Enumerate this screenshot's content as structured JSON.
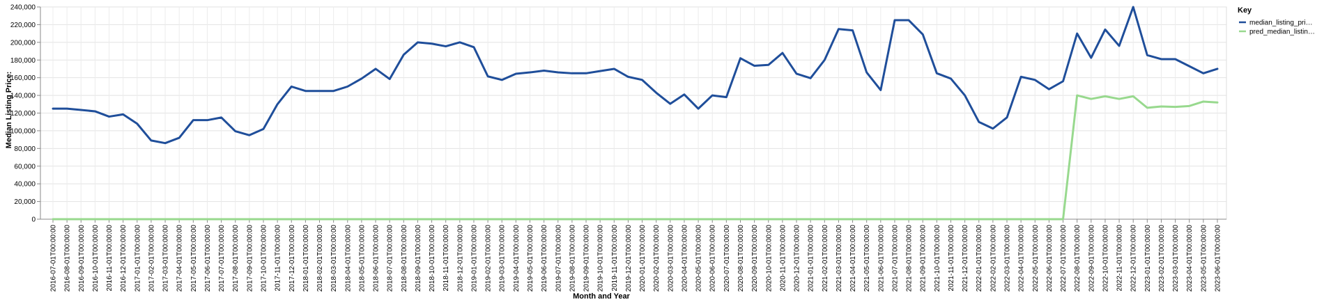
{
  "chart_data": {
    "type": "line",
    "xlabel": "Month and Year",
    "ylabel": "Median Listing Price:",
    "ylim": [
      0,
      240000
    ],
    "yticks": [
      "0",
      "20,000",
      "40,000",
      "60,000",
      "80,000",
      "100,000",
      "120,000",
      "140,000",
      "160,000",
      "180,000",
      "200,000",
      "220,000",
      "240,000"
    ],
    "grid": true,
    "legend": {
      "title": "Key",
      "placement": "right"
    },
    "x": [
      "2016-07-01T00:00:00",
      "2016-08-01T00:00:00",
      "2016-09-01T00:00:00",
      "2016-10-01T00:00:00",
      "2016-11-01T00:00:00",
      "2016-12-01T00:00:00",
      "2017-01-01T00:00:00",
      "2017-02-01T00:00:00",
      "2017-03-01T00:00:00",
      "2017-04-01T00:00:00",
      "2017-05-01T00:00:00",
      "2017-06-01T00:00:00",
      "2017-07-01T00:00:00",
      "2017-08-01T00:00:00",
      "2017-09-01T00:00:00",
      "2017-10-01T00:00:00",
      "2017-11-01T00:00:00",
      "2017-12-01T00:00:00",
      "2018-01-01T00:00:00",
      "2018-02-01T00:00:00",
      "2018-03-01T00:00:00",
      "2018-04-01T00:00:00",
      "2018-05-01T00:00:00",
      "2018-06-01T00:00:00",
      "2018-07-01T00:00:00",
      "2018-08-01T00:00:00",
      "2018-09-01T00:00:00",
      "2018-10-01T00:00:00",
      "2018-11-01T00:00:00",
      "2018-12-01T00:00:00",
      "2019-01-01T00:00:00",
      "2019-02-01T00:00:00",
      "2019-03-01T00:00:00",
      "2019-04-01T00:00:00",
      "2019-05-01T00:00:00",
      "2019-06-01T00:00:00",
      "2019-07-01T00:00:00",
      "2019-08-01T00:00:00",
      "2019-09-01T00:00:00",
      "2019-10-01T00:00:00",
      "2019-11-01T00:00:00",
      "2019-12-01T00:00:00",
      "2020-01-01T00:00:00",
      "2020-02-01T00:00:00",
      "2020-03-01T00:00:00",
      "2020-04-01T00:00:00",
      "2020-05-01T00:00:00",
      "2020-06-01T00:00:00",
      "2020-07-01T00:00:00",
      "2020-08-01T00:00:00",
      "2020-09-01T00:00:00",
      "2020-10-01T00:00:00",
      "2020-11-01T00:00:00",
      "2020-12-01T00:00:00",
      "2021-01-01T00:00:00",
      "2021-02-01T00:00:00",
      "2021-03-01T00:00:00",
      "2021-04-01T00:00:00",
      "2021-05-01T00:00:00",
      "2021-06-01T00:00:00",
      "2021-07-01T00:00:00",
      "2021-08-01T00:00:00",
      "2021-09-01T00:00:00",
      "2021-10-01T00:00:00",
      "2021-11-01T00:00:00",
      "2021-12-01T00:00:00",
      "2022-01-01T00:00:00",
      "2022-02-01T00:00:00",
      "2022-03-01T00:00:00",
      "2022-04-01T00:00:00",
      "2022-05-01T00:00:00",
      "2022-06-01T00:00:00",
      "2022-07-01T00:00:00",
      "2022-08-01T00:00:00",
      "2022-09-01T00:00:00",
      "2022-10-01T00:00:00",
      "2022-11-01T00:00:00",
      "2022-12-01T00:00:00",
      "2023-01-01T00:00:00",
      "2023-02-01T00:00:00",
      "2023-03-01T00:00:00",
      "2023-04-01T00:00:00",
      "2023-05-01T00:00:00",
      "2023-06-01T00:00:00"
    ],
    "series": [
      {
        "name": "median_listing_pri…",
        "color": "#1f4e9a",
        "values": [
          125000,
          125000,
          123500,
          122000,
          116000,
          118500,
          108000,
          89000,
          86000,
          92000,
          112000,
          112000,
          115000,
          99500,
          95000,
          102000,
          130000,
          150000,
          145000,
          145000,
          145000,
          150000,
          159000,
          170000,
          158500,
          186000,
          200000,
          198500,
          195500,
          200000,
          194500,
          161500,
          157500,
          164500,
          166000,
          168000,
          166000,
          165000,
          165000,
          167500,
          170000,
          161000,
          157500,
          143000,
          130500,
          141000,
          125000,
          140000,
          138000,
          182000,
          173500,
          174500,
          188000,
          164500,
          159500,
          180000,
          215000,
          213500,
          166000,
          146000,
          225000,
          225000,
          209000,
          165000,
          159000,
          140000,
          110000,
          102500,
          115000,
          161000,
          157500,
          147000,
          156000,
          210000,
          182500,
          214500,
          196000,
          240000,
          185500,
          181000,
          181000,
          173000,
          165000,
          170000
        ]
      },
      {
        "name": "pred_median_listin…",
        "color": "#98d98e",
        "values": [
          0,
          0,
          0,
          0,
          0,
          0,
          0,
          0,
          0,
          0,
          0,
          0,
          0,
          0,
          0,
          0,
          0,
          0,
          0,
          0,
          0,
          0,
          0,
          0,
          0,
          0,
          0,
          0,
          0,
          0,
          0,
          0,
          0,
          0,
          0,
          0,
          0,
          0,
          0,
          0,
          0,
          0,
          0,
          0,
          0,
          0,
          0,
          0,
          0,
          0,
          0,
          0,
          0,
          0,
          0,
          0,
          0,
          0,
          0,
          0,
          0,
          0,
          0,
          0,
          0,
          0,
          0,
          0,
          0,
          0,
          0,
          0,
          0,
          140000,
          136000,
          139000,
          136000,
          139000,
          126000,
          127500,
          127000,
          128000,
          133000,
          132000
        ]
      }
    ]
  }
}
